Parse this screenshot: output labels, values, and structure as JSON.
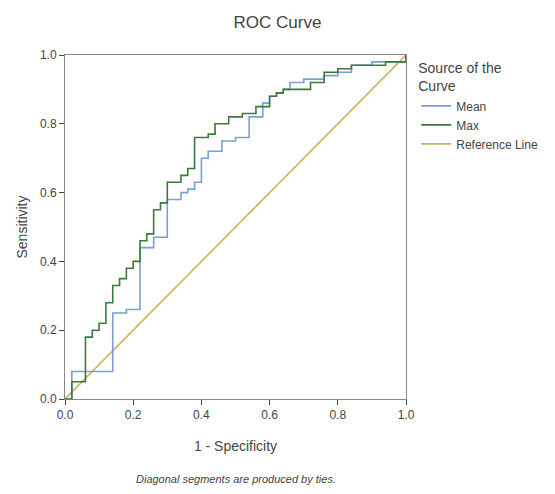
{
  "chart_data": {
    "type": "line",
    "title": "ROC Curve",
    "x_label": "1 - Specificity",
    "y_label": "Sensitivity",
    "annotations": [
      "Diagonal segments are produced by ties."
    ],
    "legend_title": "Source of the\nCurve",
    "legend": "right",
    "grid": false,
    "xlim": [
      0.0,
      1.0
    ],
    "ylim": [
      0.0,
      1.0
    ],
    "xticks": [
      {
        "value": 0.0,
        "label": "0.0"
      },
      0.2,
      0.4,
      0.6,
      0.8,
      {
        "value": 1.0,
        "label": "1.0"
      }
    ],
    "yticks": [
      {
        "value": 0.0,
        "label": "0.0"
      },
      0.2,
      0.4,
      0.6,
      0.8,
      {
        "value": 1.0,
        "label": "1.0"
      }
    ],
    "series": [
      {
        "name": "Mean",
        "color": "#7b9fd4",
        "x": [
          0.0,
          0.02,
          0.02,
          0.04,
          0.04,
          0.06,
          0.06,
          0.08,
          0.08,
          0.1,
          0.1,
          0.12,
          0.12,
          0.14,
          0.14,
          0.18,
          0.18,
          0.22,
          0.22,
          0.26,
          0.26,
          0.3,
          0.3,
          0.34,
          0.34,
          0.36,
          0.36,
          0.38,
          0.38,
          0.4,
          0.4,
          0.42,
          0.42,
          0.46,
          0.46,
          0.5,
          0.5,
          0.54,
          0.54,
          0.58,
          0.58,
          0.6,
          0.6,
          0.62,
          0.62,
          0.64,
          0.64,
          0.66,
          0.66,
          0.7,
          0.7,
          0.76,
          0.76,
          0.8,
          0.8,
          0.84,
          0.84,
          0.86,
          0.86,
          0.9,
          0.9,
          1.0,
          1.0
        ],
        "values": [
          0.0,
          0.0,
          0.08,
          0.08,
          0.08,
          0.08,
          0.08,
          0.08,
          0.08,
          0.08,
          0.08,
          0.08,
          0.08,
          0.08,
          0.25,
          0.25,
          0.26,
          0.26,
          0.44,
          0.44,
          0.47,
          0.47,
          0.58,
          0.58,
          0.6,
          0.6,
          0.61,
          0.61,
          0.63,
          0.63,
          0.7,
          0.7,
          0.72,
          0.72,
          0.75,
          0.75,
          0.76,
          0.76,
          0.82,
          0.82,
          0.86,
          0.86,
          0.88,
          0.88,
          0.89,
          0.89,
          0.9,
          0.9,
          0.92,
          0.92,
          0.93,
          0.93,
          0.94,
          0.94,
          0.95,
          0.95,
          0.97,
          0.97,
          0.97,
          0.97,
          0.98,
          0.98,
          1.0
        ]
      },
      {
        "name": "Max",
        "color": "#3a7a3a",
        "x": [
          0.0,
          0.02,
          0.02,
          0.04,
          0.04,
          0.06,
          0.06,
          0.08,
          0.08,
          0.1,
          0.1,
          0.12,
          0.12,
          0.14,
          0.14,
          0.16,
          0.16,
          0.18,
          0.18,
          0.2,
          0.2,
          0.22,
          0.22,
          0.24,
          0.24,
          0.26,
          0.26,
          0.28,
          0.28,
          0.3,
          0.3,
          0.34,
          0.34,
          0.36,
          0.36,
          0.38,
          0.38,
          0.42,
          0.42,
          0.44,
          0.44,
          0.48,
          0.48,
          0.52,
          0.52,
          0.56,
          0.56,
          0.6,
          0.6,
          0.62,
          0.62,
          0.64,
          0.64,
          0.72,
          0.72,
          0.76,
          0.76,
          0.8,
          0.8,
          0.84,
          0.84,
          0.88,
          0.88,
          0.9,
          0.9,
          0.92,
          0.92,
          0.94,
          0.94,
          1.0,
          1.0
        ],
        "values": [
          0.0,
          0.0,
          0.05,
          0.05,
          0.05,
          0.05,
          0.18,
          0.18,
          0.2,
          0.2,
          0.22,
          0.22,
          0.28,
          0.28,
          0.33,
          0.33,
          0.35,
          0.35,
          0.38,
          0.38,
          0.4,
          0.4,
          0.46,
          0.46,
          0.48,
          0.48,
          0.55,
          0.55,
          0.57,
          0.57,
          0.63,
          0.63,
          0.65,
          0.65,
          0.67,
          0.67,
          0.76,
          0.76,
          0.77,
          0.77,
          0.8,
          0.8,
          0.82,
          0.82,
          0.83,
          0.83,
          0.85,
          0.85,
          0.88,
          0.88,
          0.89,
          0.89,
          0.9,
          0.9,
          0.92,
          0.92,
          0.95,
          0.95,
          0.96,
          0.96,
          0.97,
          0.97,
          0.97,
          0.97,
          0.97,
          0.97,
          0.97,
          0.97,
          0.98,
          0.98,
          1.0
        ]
      },
      {
        "name": "Reference Line",
        "color": "#c8b560",
        "x": [
          0,
          1
        ],
        "values": [
          0,
          1
        ]
      }
    ]
  }
}
